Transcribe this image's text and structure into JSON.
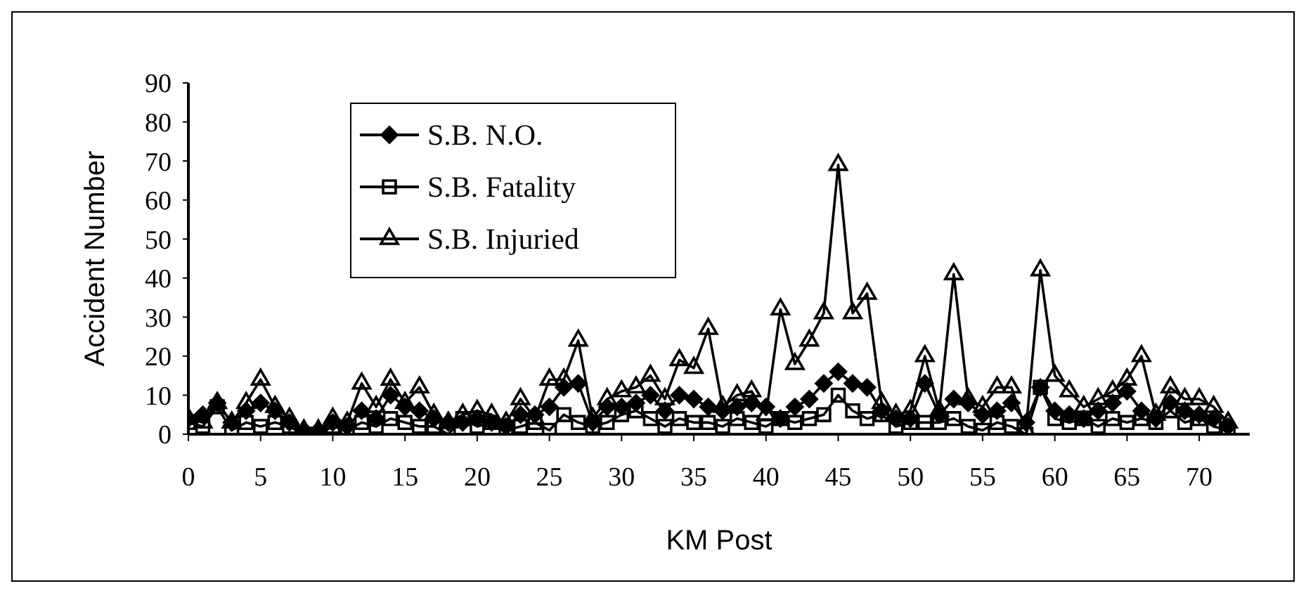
{
  "chart_data": {
    "type": "line",
    "xlabel": "KM Post",
    "ylabel": "Accident  Number",
    "x": [
      0,
      1,
      2,
      3,
      4,
      5,
      6,
      7,
      8,
      9,
      10,
      11,
      12,
      13,
      14,
      15,
      16,
      17,
      18,
      19,
      20,
      21,
      22,
      23,
      24,
      25,
      26,
      27,
      28,
      29,
      30,
      31,
      32,
      33,
      34,
      35,
      36,
      37,
      38,
      39,
      40,
      41,
      42,
      43,
      44,
      45,
      46,
      47,
      48,
      49,
      50,
      51,
      52,
      53,
      54,
      55,
      56,
      57,
      58,
      59,
      60,
      61,
      62,
      63,
      64,
      65,
      66,
      67,
      68,
      69,
      70,
      71,
      72
    ],
    "series": [
      {
        "name": "S.B. N.O.",
        "color": "#000000",
        "marker": "diamond",
        "values": [
          4,
          5,
          8,
          3,
          6,
          8,
          6,
          3,
          1,
          1,
          3,
          2,
          6,
          4,
          10,
          7,
          6,
          4,
          3,
          3,
          4,
          3,
          2,
          5,
          5,
          7,
          12,
          13,
          3,
          7,
          7,
          8,
          10,
          6,
          10,
          9,
          7,
          6,
          7,
          8,
          7,
          4,
          7,
          9,
          13,
          16,
          13,
          12,
          6,
          4,
          4,
          13,
          5,
          9,
          8,
          5,
          6,
          8,
          3,
          12,
          6,
          5,
          4,
          6,
          8,
          11,
          6,
          4,
          8,
          6,
          5,
          4,
          2
        ]
      },
      {
        "name": "S.B. Fatality",
        "color": "#000000",
        "marker": "square",
        "values": [
          3,
          2,
          7,
          1,
          3,
          2,
          3,
          2,
          0,
          0,
          2,
          1,
          3,
          2,
          4,
          3,
          2,
          2,
          0,
          4,
          2,
          3,
          1,
          2,
          3,
          1,
          5,
          3,
          2,
          3,
          5,
          6,
          4,
          2,
          4,
          3,
          3,
          2,
          4,
          3,
          2,
          4,
          3,
          4,
          5,
          10,
          6,
          4,
          5,
          2,
          3,
          3,
          3,
          4,
          2,
          1,
          3,
          2,
          0,
          12,
          4,
          3,
          4,
          2,
          4,
          3,
          4,
          3,
          6,
          3,
          4,
          2,
          1
        ]
      },
      {
        "name": "S.B. Injuried",
        "color": "#000000",
        "marker": "triangle",
        "values": [
          4,
          3,
          8,
          3,
          8,
          14,
          7,
          4,
          1,
          1,
          4,
          3,
          13,
          7,
          14,
          8,
          12,
          5,
          3,
          5,
          6,
          5,
          3,
          9,
          4,
          14,
          14,
          24,
          4,
          9,
          11,
          12,
          15,
          9,
          19,
          17,
          27,
          7,
          10,
          11,
          5,
          32,
          18,
          24,
          31,
          69,
          31,
          36,
          8,
          5,
          6,
          20,
          6,
          41,
          9,
          7,
          12,
          12,
          1,
          42,
          15,
          11,
          7,
          9,
          11,
          14,
          20,
          5,
          12,
          9,
          9,
          7,
          3
        ]
      }
    ],
    "xlim": [
      0,
      73.5
    ],
    "xticks": [
      0,
      5,
      10,
      15,
      20,
      25,
      30,
      35,
      40,
      45,
      50,
      55,
      60,
      65,
      70
    ],
    "ylim": [
      0,
      90
    ],
    "yticks": [
      0,
      10,
      20,
      30,
      40,
      50,
      60,
      70,
      80,
      90
    ],
    "legend": "top left",
    "grid": false,
    "line_style": "solid"
  }
}
